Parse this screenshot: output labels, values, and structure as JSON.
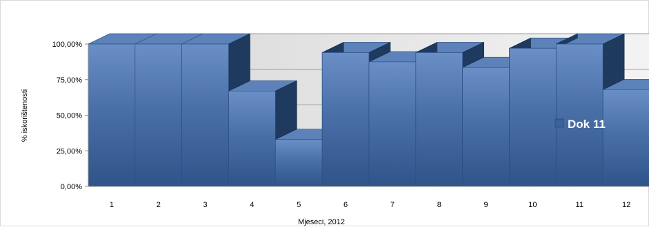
{
  "chart_data": {
    "type": "area",
    "style": "3d-stepped-area",
    "categories": [
      "1",
      "2",
      "3",
      "4",
      "5",
      "6",
      "7",
      "8",
      "9",
      "10",
      "11",
      "12"
    ],
    "series": [
      {
        "name": "Dok 11",
        "values": [
          100,
          100,
          100,
          67,
          33,
          94,
          87.5,
          94,
          83.5,
          97,
          100,
          68
        ]
      }
    ],
    "xlabel": "Mjeseci, 2012",
    "ylabel": "% iskorištenosti",
    "ylim": [
      0,
      100
    ],
    "yticks": [
      "0,00%",
      "25,00%",
      "50,00%",
      "75,00%",
      "100,00%"
    ],
    "grid": true,
    "legend": "right",
    "colors": {
      "series": "#3b629a",
      "series_light": "#5f86bf",
      "depth": "#1f3a5f",
      "wall": "#e6e6e6",
      "grid": "#9a9a9a"
    }
  }
}
